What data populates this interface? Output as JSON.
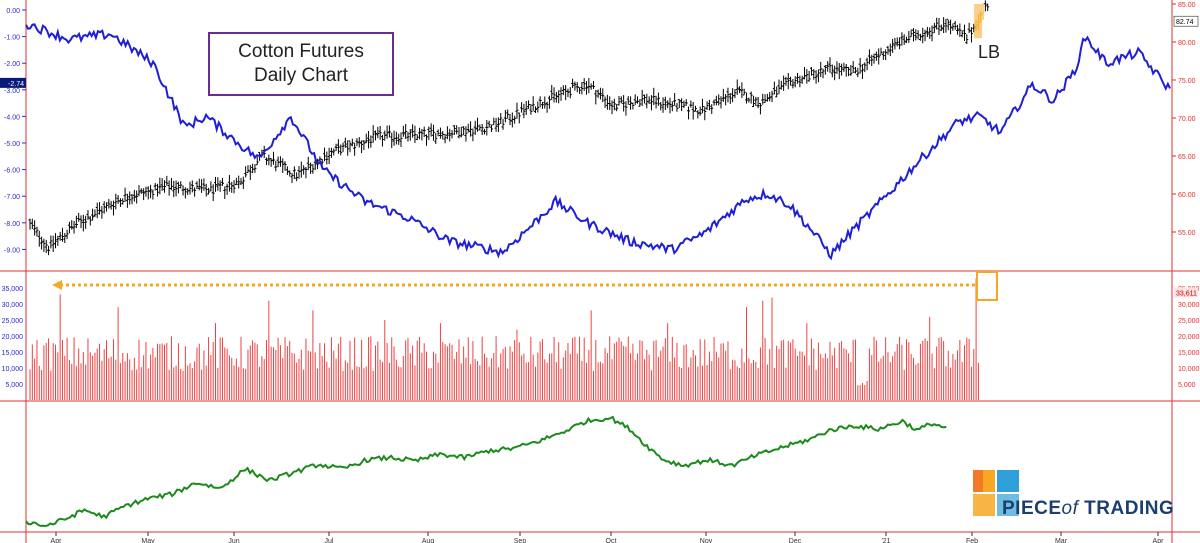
{
  "title_lines": [
    "Cotton Futures",
    "Daily Chart"
  ],
  "annotation_lb": "LB",
  "logo": {
    "word1": "PIECE",
    "word2": "of",
    "word3": "TRADING",
    "colors": [
      "#f7a823",
      "#f15a24",
      "#2e9fd8",
      "#1e3f6e"
    ]
  },
  "colors": {
    "price": "#000000",
    "blue_line": "#1f1fd6",
    "volume": "#f04040",
    "green_line": "#1d8a1d",
    "highlight": "#f7a823",
    "left_axis": "#2a2ad6",
    "right_axis": "#e03030"
  },
  "chart_data": [
    {
      "type": "ohlc",
      "panel": "price",
      "title": "Cotton Futures Daily Chart",
      "right_axis": {
        "ticks": [
          "85.00",
          "80.00",
          "75.00",
          "70.00",
          "65.00",
          "60.00",
          "55.00"
        ],
        "range": [
          50.0,
          85.0
        ]
      },
      "left_axis": {
        "ticks": [
          "0.00",
          "-1.00",
          "-2.00",
          "-3.00",
          "-4.00",
          "-5.00",
          "-6.00",
          "-7.00",
          "-8.00",
          "-9.00"
        ],
        "range": [
          -10.0,
          0.0
        ]
      },
      "x_tick_labels": [
        "Apr",
        "May",
        "Jun",
        "Jul",
        "Aug",
        "Sep",
        "Oct",
        "Nov",
        "Dec",
        "'21",
        "Feb",
        "Mar",
        "Apr"
      ],
      "price_series_anchors": [
        [
          0,
          56.0
        ],
        [
          8,
          53.0
        ],
        [
          20,
          56.0
        ],
        [
          40,
          59.5
        ],
        [
          60,
          61.0
        ],
        [
          78,
          60.5
        ],
        [
          90,
          61.5
        ],
        [
          100,
          65.0
        ],
        [
          115,
          62.5
        ],
        [
          130,
          65.5
        ],
        [
          150,
          67.5
        ],
        [
          180,
          68.0
        ],
        [
          200,
          69.0
        ],
        [
          220,
          72.0
        ],
        [
          240,
          74.5
        ],
        [
          252,
          71.5
        ],
        [
          265,
          72.5
        ],
        [
          290,
          71.0
        ],
        [
          305,
          73.5
        ],
        [
          315,
          72.0
        ],
        [
          330,
          75.0
        ],
        [
          345,
          76.5
        ],
        [
          355,
          76.0
        ],
        [
          375,
          80.0
        ],
        [
          395,
          82.5
        ],
        [
          404,
          80.5
        ],
        [
          413,
          85.0
        ]
      ],
      "last_price": "82.74",
      "blue_series_name": "",
      "blue_series_anchors": [
        [
          0,
          -0.5
        ],
        [
          20,
          -1.1
        ],
        [
          40,
          -0.9
        ],
        [
          60,
          -2.0
        ],
        [
          75,
          -4.4
        ],
        [
          85,
          -4.0
        ],
        [
          100,
          -5.0
        ],
        [
          110,
          -5.6
        ],
        [
          125,
          -4.0
        ],
        [
          140,
          -6.0
        ],
        [
          160,
          -7.2
        ],
        [
          180,
          -7.8
        ],
        [
          200,
          -8.7
        ],
        [
          225,
          -9.1
        ],
        [
          240,
          -8.0
        ],
        [
          250,
          -7.2
        ],
        [
          265,
          -8.0
        ],
        [
          285,
          -8.7
        ],
        [
          305,
          -9.0
        ],
        [
          320,
          -8.4
        ],
        [
          340,
          -7.1
        ],
        [
          350,
          -6.9
        ],
        [
          360,
          -7.3
        ],
        [
          370,
          -8.2
        ],
        [
          380,
          -9.2
        ],
        [
          390,
          -8.3
        ],
        [
          400,
          -7.5
        ],
        [
          420,
          -5.8
        ],
        [
          440,
          -4.2
        ],
        [
          450,
          -4.0
        ],
        [
          460,
          -4.6
        ],
        [
          475,
          -2.8
        ],
        [
          485,
          -3.4
        ],
        [
          495,
          -2.3
        ],
        [
          500,
          -1.0
        ],
        [
          510,
          -2.0
        ],
        [
          525,
          -1.6
        ],
        [
          540,
          -3.0
        ]
      ],
      "blue_last_value": "-2.74",
      "annotation": "LB"
    },
    {
      "type": "bar",
      "panel": "volume",
      "right_axis": {
        "ticks": [
          "35,000",
          "30,000",
          "25,000",
          "20,000",
          "15,000",
          "10,000",
          "5,000"
        ]
      },
      "left_axis": {
        "ticks": [
          "35,000",
          "30,000",
          "25,000",
          "20,000",
          "15,000",
          "10,000",
          "5,000"
        ]
      },
      "range": [
        0,
        40000
      ],
      "last_value": "33,611",
      "spikes": [
        [
          13,
          33000
        ],
        [
          38,
          29000
        ],
        [
          80,
          24000
        ],
        [
          103,
          31000
        ],
        [
          122,
          28000
        ],
        [
          153,
          25000
        ],
        [
          177,
          24000
        ],
        [
          210,
          22000
        ],
        [
          242,
          28000
        ],
        [
          275,
          24000
        ],
        [
          309,
          29000
        ],
        [
          316,
          31000
        ],
        [
          320,
          32000
        ],
        [
          335,
          24000
        ],
        [
          360,
          25000
        ],
        [
          388,
          26000
        ],
        [
          408,
          38000
        ]
      ]
    },
    {
      "type": "line",
      "panel": "indicator",
      "series_name": "",
      "anchors": [
        [
          0,
          0.04
        ],
        [
          8,
          0.0
        ],
        [
          16,
          0.06
        ],
        [
          24,
          0.14
        ],
        [
          32,
          0.08
        ],
        [
          40,
          0.17
        ],
        [
          50,
          0.24
        ],
        [
          60,
          0.28
        ],
        [
          70,
          0.38
        ],
        [
          80,
          0.33
        ],
        [
          90,
          0.5
        ],
        [
          100,
          0.4
        ],
        [
          110,
          0.47
        ],
        [
          120,
          0.54
        ],
        [
          130,
          0.5
        ],
        [
          140,
          0.58
        ],
        [
          150,
          0.6
        ],
        [
          160,
          0.57
        ],
        [
          170,
          0.63
        ],
        [
          180,
          0.6
        ],
        [
          190,
          0.66
        ],
        [
          200,
          0.68
        ],
        [
          210,
          0.74
        ],
        [
          220,
          0.82
        ],
        [
          230,
          0.92
        ],
        [
          240,
          0.95
        ],
        [
          248,
          0.85
        ],
        [
          255,
          0.7
        ],
        [
          262,
          0.58
        ],
        [
          270,
          0.53
        ],
        [
          280,
          0.58
        ],
        [
          290,
          0.53
        ],
        [
          300,
          0.62
        ],
        [
          312,
          0.7
        ],
        [
          322,
          0.76
        ],
        [
          330,
          0.84
        ],
        [
          340,
          0.88
        ],
        [
          350,
          0.85
        ],
        [
          360,
          0.92
        ],
        [
          366,
          0.84
        ],
        [
          372,
          0.9
        ],
        [
          378,
          0.86
        ]
      ]
    }
  ]
}
